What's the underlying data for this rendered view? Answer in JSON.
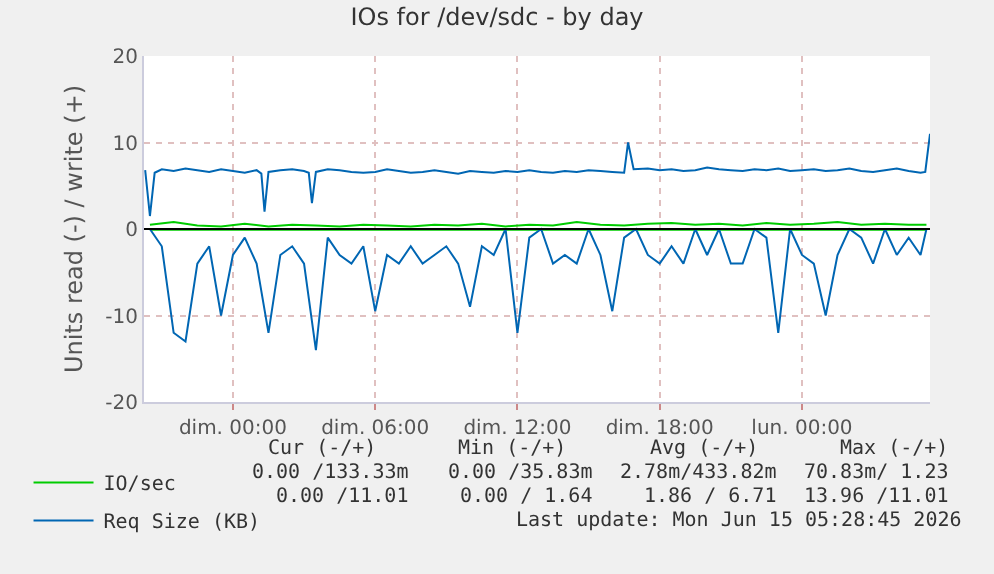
{
  "chart_data": {
    "type": "line",
    "title": "IOs for /dev/sdc - by day",
    "ylabel": "Units read (-) / write (+)",
    "xlim": [
      "2026-06-13T20:15",
      "2026-06-15T05:24"
    ],
    "xticks": [
      {
        "value": "2026-06-14T00:00",
        "label": "dim. 00:00"
      },
      {
        "value": "2026-06-14T06:00",
        "label": "dim. 06:00"
      },
      {
        "value": "2026-06-14T12:00",
        "label": "dim. 12:00"
      },
      {
        "value": "2026-06-14T18:00",
        "label": "dim. 18:00"
      },
      {
        "value": "2026-06-15T00:00",
        "label": "lun. 00:00"
      }
    ],
    "ylim": [
      -20,
      20
    ],
    "yticks": [
      -20,
      -10,
      0,
      10,
      20
    ],
    "grid": true,
    "legend": "bottom left",
    "ref_lines": [
      {
        "axis": "y",
        "value": 0,
        "color": "#000000"
      }
    ],
    "series": [
      {
        "name": "IO/sec",
        "color": "#00cc00",
        "x": [
          "2026-06-13T20:30",
          "2026-06-13T21:30",
          "2026-06-13T22:30",
          "2026-06-13T23:30",
          "2026-06-14T00:30",
          "2026-06-14T01:30",
          "2026-06-14T02:30",
          "2026-06-14T03:30",
          "2026-06-14T04:30",
          "2026-06-14T05:30",
          "2026-06-14T06:30",
          "2026-06-14T07:30",
          "2026-06-14T08:30",
          "2026-06-14T09:30",
          "2026-06-14T10:30",
          "2026-06-14T11:30",
          "2026-06-14T12:30",
          "2026-06-14T13:30",
          "2026-06-14T14:30",
          "2026-06-14T15:30",
          "2026-06-14T16:30",
          "2026-06-14T17:30",
          "2026-06-14T18:30",
          "2026-06-14T19:30",
          "2026-06-14T20:30",
          "2026-06-14T21:30",
          "2026-06-14T22:30",
          "2026-06-14T23:30",
          "2026-06-15T00:30",
          "2026-06-15T01:30",
          "2026-06-15T02:30",
          "2026-06-15T03:30",
          "2026-06-15T04:30",
          "2026-06-15T05:15"
        ],
        "values": [
          0.5,
          0.8,
          0.4,
          0.3,
          0.6,
          0.3,
          0.5,
          0.4,
          0.3,
          0.5,
          0.4,
          0.3,
          0.5,
          0.4,
          0.6,
          0.3,
          0.5,
          0.4,
          0.8,
          0.5,
          0.4,
          0.6,
          0.7,
          0.5,
          0.6,
          0.4,
          0.7,
          0.5,
          0.6,
          0.8,
          0.5,
          0.6,
          0.5,
          0.5
        ]
      },
      {
        "color": "#00cc00",
        "x": [
          "2026-06-13T20:30",
          "2026-06-13T21:30",
          "2026-06-13T22:30",
          "2026-06-13T23:30",
          "2026-06-14T00:30",
          "2026-06-14T01:30",
          "2026-06-14T02:30",
          "2026-06-14T03:30",
          "2026-06-14T04:30",
          "2026-06-14T05:30",
          "2026-06-14T06:30",
          "2026-06-14T07:30",
          "2026-06-14T08:30",
          "2026-06-14T09:30",
          "2026-06-14T10:30",
          "2026-06-14T11:30",
          "2026-06-14T12:30",
          "2026-06-14T13:30",
          "2026-06-14T14:30",
          "2026-06-14T15:30",
          "2026-06-14T16:30",
          "2026-06-14T17:30",
          "2026-06-14T18:30",
          "2026-06-14T19:30",
          "2026-06-14T20:30",
          "2026-06-14T21:30",
          "2026-06-14T22:30",
          "2026-06-14T23:30",
          "2026-06-15T00:30",
          "2026-06-15T01:30",
          "2026-06-15T02:30",
          "2026-06-15T03:30",
          "2026-06-15T04:30",
          "2026-06-15T05:15"
        ],
        "values": [
          -0.1,
          -0.1,
          -0.1,
          -0.1,
          -0.1,
          -0.1,
          -0.1,
          -0.1,
          -0.1,
          -0.1,
          -0.1,
          -0.1,
          -0.1,
          -0.1,
          -0.1,
          -0.1,
          -0.1,
          -0.1,
          -0.1,
          -0.1,
          -0.1,
          -0.1,
          -0.1,
          -0.1,
          -0.1,
          -0.1,
          -0.1,
          -0.1,
          -0.1,
          -0.1,
          -0.1,
          -0.1,
          -0.1,
          -0.1
        ]
      },
      {
        "name": "Req Size (KB)",
        "color": "#0066b3",
        "x": [
          "2026-06-13T20:18",
          "2026-06-13T20:30",
          "2026-06-13T20:42",
          "2026-06-13T21:00",
          "2026-06-13T21:30",
          "2026-06-13T22:00",
          "2026-06-13T22:30",
          "2026-06-13T23:00",
          "2026-06-13T23:30",
          "2026-06-14T00:00",
          "2026-06-14T00:30",
          "2026-06-14T01:00",
          "2026-06-14T01:12",
          "2026-06-14T01:20",
          "2026-06-14T01:30",
          "2026-06-14T02:00",
          "2026-06-14T02:30",
          "2026-06-14T03:00",
          "2026-06-14T03:12",
          "2026-06-14T03:20",
          "2026-06-14T03:30",
          "2026-06-14T04:00",
          "2026-06-14T04:30",
          "2026-06-14T05:00",
          "2026-06-14T05:30",
          "2026-06-14T06:00",
          "2026-06-14T06:30",
          "2026-06-14T07:00",
          "2026-06-14T07:30",
          "2026-06-14T08:00",
          "2026-06-14T08:30",
          "2026-06-14T09:00",
          "2026-06-14T09:30",
          "2026-06-14T10:00",
          "2026-06-14T10:30",
          "2026-06-14T11:00",
          "2026-06-14T11:30",
          "2026-06-14T12:00",
          "2026-06-14T12:30",
          "2026-06-14T13:00",
          "2026-06-14T13:30",
          "2026-06-14T14:00",
          "2026-06-14T14:30",
          "2026-06-14T15:00",
          "2026-06-14T15:30",
          "2026-06-14T16:00",
          "2026-06-14T16:30",
          "2026-06-14T16:40",
          "2026-06-14T16:54",
          "2026-06-14T17:30",
          "2026-06-14T18:00",
          "2026-06-14T18:30",
          "2026-06-14T19:00",
          "2026-06-14T19:30",
          "2026-06-14T20:00",
          "2026-06-14T20:30",
          "2026-06-14T21:00",
          "2026-06-14T21:30",
          "2026-06-14T22:00",
          "2026-06-14T22:30",
          "2026-06-14T23:00",
          "2026-06-14T23:30",
          "2026-06-15T00:00",
          "2026-06-15T00:30",
          "2026-06-15T01:00",
          "2026-06-15T01:30",
          "2026-06-15T02:00",
          "2026-06-15T02:30",
          "2026-06-15T03:00",
          "2026-06-15T03:30",
          "2026-06-15T04:00",
          "2026-06-15T04:30",
          "2026-06-15T05:00",
          "2026-06-15T05:12",
          "2026-06-15T05:24"
        ],
        "values": [
          6.8,
          1.5,
          6.5,
          6.9,
          6.7,
          7,
          6.8,
          6.6,
          6.9,
          6.7,
          6.5,
          6.8,
          6.4,
          2,
          6.6,
          6.8,
          6.9,
          6.7,
          6.5,
          3,
          6.6,
          6.9,
          6.8,
          6.6,
          6.5,
          6.6,
          6.9,
          6.7,
          6.5,
          6.6,
          6.8,
          6.6,
          6.4,
          6.7,
          6.6,
          6.5,
          6.7,
          6.6,
          6.8,
          6.6,
          6.5,
          6.7,
          6.6,
          6.8,
          6.7,
          6.6,
          6.5,
          10,
          6.9,
          7,
          6.8,
          6.9,
          6.7,
          6.8,
          7.1,
          6.9,
          6.8,
          6.7,
          6.9,
          6.8,
          7,
          6.7,
          6.8,
          6.9,
          6.7,
          6.8,
          7,
          6.7,
          6.6,
          6.8,
          7,
          6.7,
          6.5,
          6.6,
          11
        ]
      },
      {
        "color": "#0066b3",
        "x": [
          "2026-06-13T20:30",
          "2026-06-13T21:00",
          "2026-06-13T21:30",
          "2026-06-13T22:00",
          "2026-06-13T22:30",
          "2026-06-13T23:00",
          "2026-06-13T23:30",
          "2026-06-14T00:00",
          "2026-06-14T00:30",
          "2026-06-14T01:00",
          "2026-06-14T01:30",
          "2026-06-14T02:00",
          "2026-06-14T02:30",
          "2026-06-14T03:00",
          "2026-06-14T03:30",
          "2026-06-14T04:00",
          "2026-06-14T04:30",
          "2026-06-14T05:00",
          "2026-06-14T05:30",
          "2026-06-14T06:00",
          "2026-06-14T06:30",
          "2026-06-14T07:00",
          "2026-06-14T07:30",
          "2026-06-14T08:00",
          "2026-06-14T08:30",
          "2026-06-14T09:00",
          "2026-06-14T09:30",
          "2026-06-14T10:00",
          "2026-06-14T10:30",
          "2026-06-14T11:00",
          "2026-06-14T11:30",
          "2026-06-14T12:00",
          "2026-06-14T12:30",
          "2026-06-14T13:00",
          "2026-06-14T13:30",
          "2026-06-14T14:00",
          "2026-06-14T14:30",
          "2026-06-14T15:00",
          "2026-06-14T15:30",
          "2026-06-14T16:00",
          "2026-06-14T16:30",
          "2026-06-14T17:00",
          "2026-06-14T17:30",
          "2026-06-14T18:00",
          "2026-06-14T18:30",
          "2026-06-14T19:00",
          "2026-06-14T19:30",
          "2026-06-14T20:00",
          "2026-06-14T20:30",
          "2026-06-14T21:00",
          "2026-06-14T21:30",
          "2026-06-14T22:00",
          "2026-06-14T22:30",
          "2026-06-14T23:00",
          "2026-06-14T23:30",
          "2026-06-15T00:00",
          "2026-06-15T00:30",
          "2026-06-15T01:00",
          "2026-06-15T01:30",
          "2026-06-15T02:00",
          "2026-06-15T02:30",
          "2026-06-15T03:00",
          "2026-06-15T03:30",
          "2026-06-15T04:00",
          "2026-06-15T04:30",
          "2026-06-15T05:00",
          "2026-06-15T05:15"
        ],
        "values": [
          0,
          -2,
          -12,
          -13,
          -4,
          -2,
          -10,
          -3,
          -1,
          -4,
          -12,
          -3,
          -2,
          -4,
          -14,
          -1,
          -3,
          -4,
          -2,
          -9.5,
          -3,
          -4,
          -2,
          -4,
          -3,
          -2,
          -4,
          -9,
          -2,
          -3,
          0,
          -12,
          -1,
          0,
          -4,
          -3,
          -4,
          0,
          -3,
          -9.5,
          -1,
          0,
          -3,
          -4,
          -2,
          -4,
          0,
          -3,
          0,
          -4,
          -4,
          0,
          -1,
          -12,
          0,
          -3,
          -4,
          -10,
          -3,
          0,
          -1,
          -4,
          0,
          -3,
          -1,
          -3,
          0
        ]
      }
    ],
    "annotations": [
      "Cur (-/+)",
      "Min (-/+)",
      "Avg (-/+)",
      "Max (-/+)",
      "0.00 /133.33m",
      "0.00 /35.83m",
      "2.78m/433.82m",
      "70.83m/ 1.23",
      "0.00 /11.01",
      "0.00 / 1.64",
      "1.86 / 6.71",
      "13.96 /11.01",
      "Last update: Mon Jun 15 05:28:45 2026"
    ]
  }
}
